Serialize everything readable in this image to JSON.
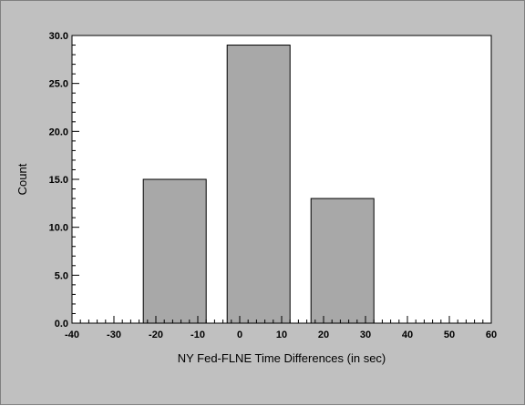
{
  "chart_data": {
    "type": "bar",
    "title": "",
    "xlabel": "NY Fed-FLNE Time Differences (in sec)",
    "ylabel": "Count",
    "xlim": [
      -40,
      60
    ],
    "ylim": [
      0,
      30
    ],
    "grid": false,
    "bars": [
      {
        "x_start": -23,
        "x_end": -8,
        "value": 15
      },
      {
        "x_start": -3,
        "x_end": 12,
        "value": 29
      },
      {
        "x_start": 17,
        "x_end": 32,
        "value": 13
      }
    ],
    "x_ticks": [
      {
        "value": -40,
        "label": "-40"
      },
      {
        "value": -30,
        "label": "-30"
      },
      {
        "value": -20,
        "label": "-20"
      },
      {
        "value": -10,
        "label": "-10"
      },
      {
        "value": 0,
        "label": "0"
      },
      {
        "value": 10,
        "label": "10"
      },
      {
        "value": 20,
        "label": "20"
      },
      {
        "value": 30,
        "label": "30"
      },
      {
        "value": 40,
        "label": "40"
      },
      {
        "value": 50,
        "label": "50"
      },
      {
        "value": 60,
        "label": "60"
      }
    ],
    "y_ticks": [
      {
        "value": 0,
        "label": "0.0"
      },
      {
        "value": 5,
        "label": "5.0"
      },
      {
        "value": 10,
        "label": "10.0"
      },
      {
        "value": 15,
        "label": "15.0"
      },
      {
        "value": 20,
        "label": "20.0"
      },
      {
        "value": 25,
        "label": "25.0"
      },
      {
        "value": 30,
        "label": "30.0"
      }
    ],
    "colors": {
      "background": "#c0c0c0",
      "plot_area": "#ffffff",
      "bar_fill": "#a8a8a8",
      "bar_stroke": "#000000"
    }
  }
}
